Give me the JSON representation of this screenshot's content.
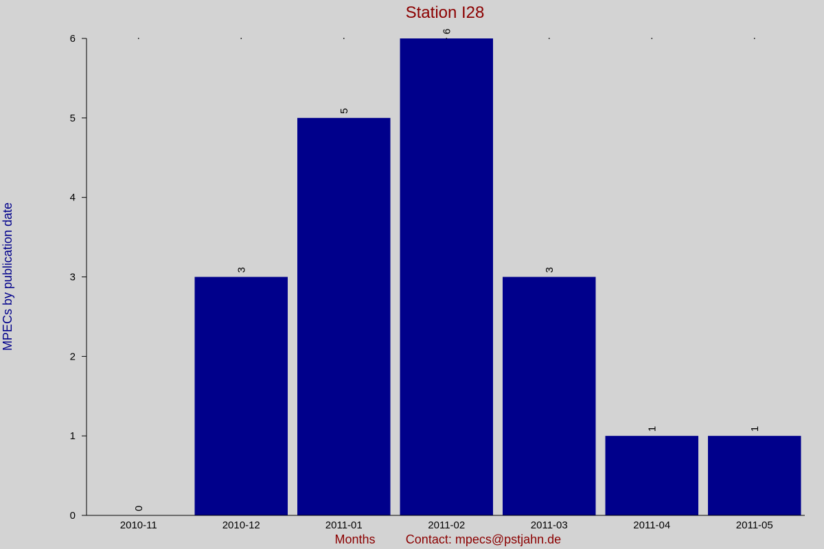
{
  "colors": {
    "background": "#d3d3d3",
    "bar": "#00008b",
    "title": "#8b0000",
    "ylabel": "#00008b",
    "footer": "#8b0000",
    "axis": "#000000"
  },
  "footer": {
    "xlabel": "Months",
    "contact": "Contact: mpecs@pstjahn.de"
  },
  "chart_data": {
    "type": "bar",
    "title": "Station I28",
    "xlabel": "Months",
    "ylabel": "MPECs by publication date",
    "categories": [
      "2010-11",
      "2010-12",
      "2011-01",
      "2011-02",
      "2011-03",
      "2011-04",
      "2011-05"
    ],
    "values": [
      0,
      3,
      5,
      6,
      3,
      1,
      1
    ],
    "ylim": [
      0,
      6
    ],
    "yticks": [
      0,
      1,
      2,
      3,
      4,
      5,
      6
    ],
    "data_labels": true,
    "grid": false
  }
}
